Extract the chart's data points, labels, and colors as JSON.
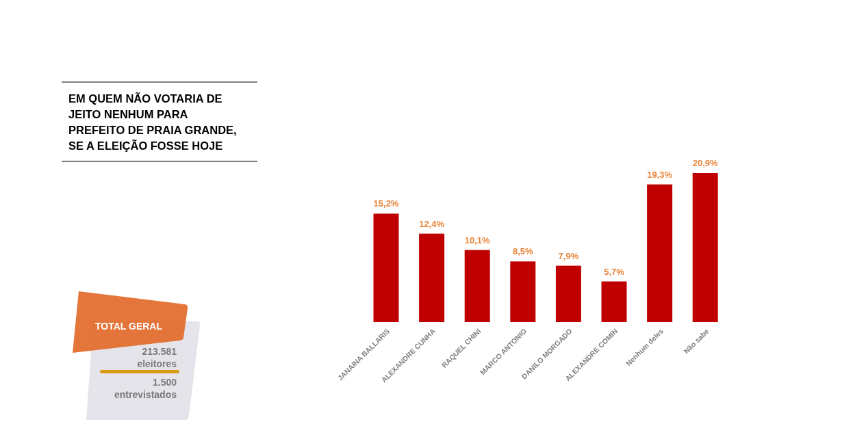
{
  "chart_data": {
    "type": "bar",
    "title": "EM QUEM NÃO VOTARIA DE JEITO NENHUM PARA PREFEITO DE PRAIA GRANDE, SE A ELEIÇÃO FOSSE HOJE",
    "categories": [
      "JANAINA BALLARIS",
      "ALEXANDRE CUNHA",
      "RAQUEL CHINI",
      "MARCO ANTONIO",
      "DANILO MORGADO",
      "ALEXANDRE COMIN",
      "Nenhum deles",
      "Não sabe"
    ],
    "values": [
      15.2,
      12.4,
      10.1,
      8.5,
      7.9,
      5.7,
      19.3,
      20.9
    ],
    "value_labels": [
      "15,2%",
      "12,4%",
      "10,1%",
      "8,5%",
      "7,9%",
      "5,7%",
      "19,3%",
      "20,9%"
    ],
    "color": "#c00000",
    "annotations": [
      "TOTAL GERAL",
      "213.581 eleitores",
      "1.500 entrevistados"
    ]
  }
}
